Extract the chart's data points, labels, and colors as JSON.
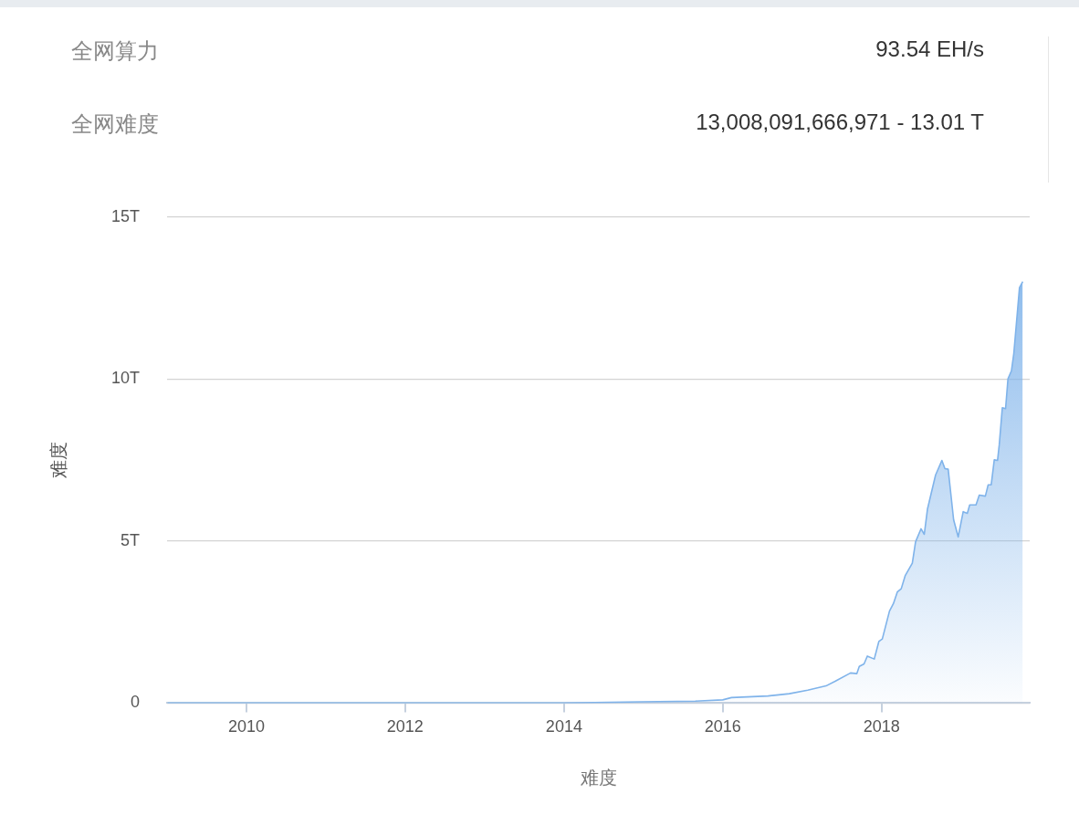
{
  "chart_data": [
    {
      "type": "other",
      "annotations": [
        "全网算力",
        "93.54 EH/s",
        "全网难度",
        "13,008,091,666,971 - 13.01 T"
      ]
    },
    {
      "type": "area",
      "xlabel": "难度",
      "ylabel": "难度",
      "grid": "y",
      "legend": false,
      "marker": "none",
      "xlim": [
        "2009-01-01",
        "2019-11-13"
      ],
      "xticks": [
        "2010",
        "2012",
        "2014",
        "2016",
        "2018"
      ],
      "ylim": [
        0,
        15
      ],
      "yticks": [
        0,
        {
          "value": 5,
          "label": "5T"
        },
        {
          "value": 10,
          "label": "10T"
        },
        {
          "value": 15,
          "label": "15T"
        }
      ],
      "series": [
        {
          "color": "#7fb3ea",
          "x": [
            "2009-01-03",
            "2012-01-01",
            "2014-01-01",
            "2014-12-20",
            "2015-08-28",
            "2016-01-01",
            "2016-02-10",
            "2016-07-27",
            "2016-11-02",
            "2017-01-26",
            "2017-04-20",
            "2017-06-03",
            "2017-08-11",
            "2017-09-09",
            "2017-09-20",
            "2017-10-12",
            "2017-10-27",
            "2017-11-28",
            "2017-12-19",
            "2018-01-04",
            "2018-02-06",
            "2018-02-24",
            "2018-03-14",
            "2018-04-01",
            "2018-04-19",
            "2018-05-22",
            "2018-06-06",
            "2018-07-01",
            "2018-07-16",
            "2018-07-31",
            "2018-09-06",
            "2018-10-05",
            "2018-10-19",
            "2018-11-03",
            "2018-11-28",
            "2018-12-19",
            "2019-01-11",
            "2019-01-30",
            "2019-02-10",
            "2019-03-11",
            "2019-03-26",
            "2019-04-23",
            "2019-05-06",
            "2019-05-20",
            "2019-06-03",
            "2019-06-18",
            "2019-06-26",
            "2019-07-10",
            "2019-07-25",
            "2019-08-05",
            "2019-08-21",
            "2019-09-01",
            "2019-09-27",
            "2019-10-12"
          ],
          "values": [
            0,
            0,
            0,
            0.04,
            0.06,
            0.1,
            0.17,
            0.22,
            0.29,
            0.4,
            0.53,
            0.68,
            0.93,
            0.91,
            1.13,
            1.21,
            1.45,
            1.36,
            1.9,
            1.98,
            2.84,
            3.07,
            3.43,
            3.53,
            3.93,
            4.32,
            4.98,
            5.38,
            5.21,
            6.0,
            7.04,
            7.49,
            7.24,
            7.22,
            5.66,
            5.13,
            5.91,
            5.86,
            6.12,
            6.12,
            6.42,
            6.39,
            6.74,
            6.74,
            7.51,
            7.49,
            7.98,
            9.12,
            9.09,
            10.01,
            10.26,
            10.8,
            12.83,
            13.01
          ]
        }
      ]
    }
  ]
}
